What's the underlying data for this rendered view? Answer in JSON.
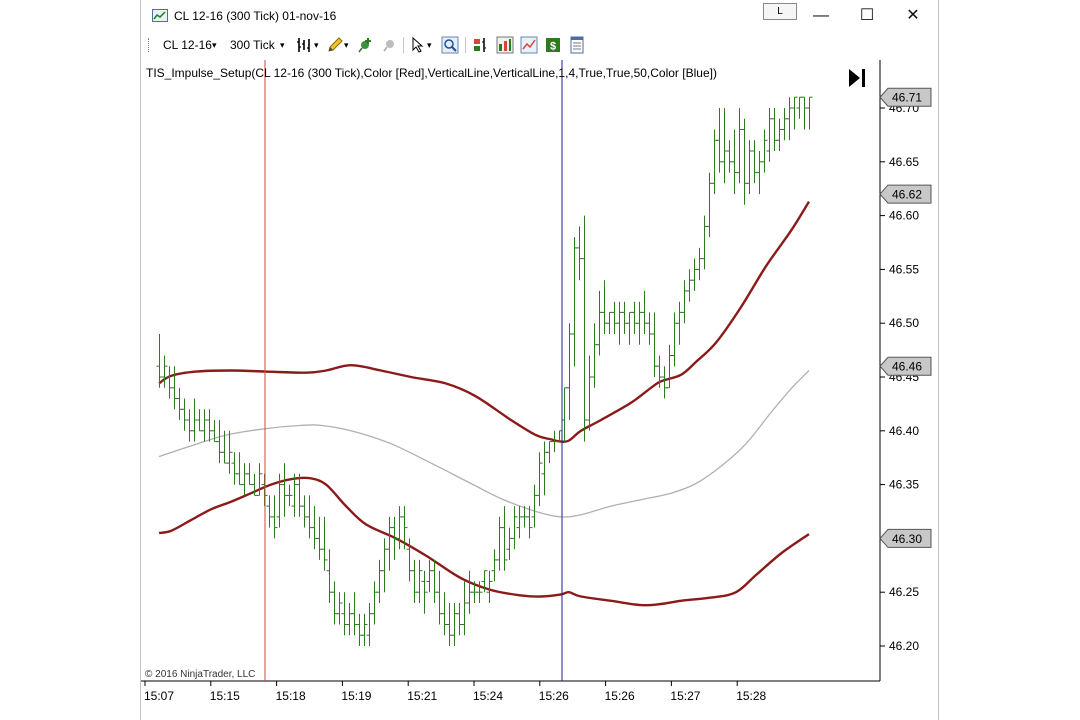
{
  "window": {
    "title": "CL 12-16 (300 Tick)  01-nov-16",
    "link_button": "L",
    "minimize": "—",
    "maximize": "☐",
    "close": "✕"
  },
  "toolbar": {
    "instrument": "CL 12-16",
    "interval": "300 Tick",
    "dropdown_glyph": "▾"
  },
  "chart": {
    "indicator_label": "TIS_Impulse_Setup(CL 12-16 (300 Tick),Color [Red],VerticalLine,VerticalLine,1,4,True,True,50,Color [Blue])",
    "copyright": "© 2016 NinjaTrader, LLC",
    "price_ticks": [
      "46.70",
      "46.65",
      "46.60",
      "46.55",
      "46.50",
      "46.45",
      "46.40",
      "46.35",
      "46.30",
      "46.25",
      "46.20"
    ],
    "time_ticks": [
      "15:07",
      "15:15",
      "15:18",
      "15:19",
      "15:21",
      "15:24",
      "15:26",
      "15:26",
      "15:27",
      "15:28"
    ],
    "price_markers": [
      {
        "value": "46.71",
        "label": "46.71"
      },
      {
        "value": "46.62",
        "label": "46.62"
      },
      {
        "value": "46.46",
        "label": "46.46"
      },
      {
        "value": "46.30",
        "label": "46.30"
      }
    ],
    "colors": {
      "bars": "#2d7a1f",
      "bands": "#8b1a1a",
      "midline": "#b0b0b0",
      "red_vline": "#d9443a",
      "blue_vline": "#1c1c9c",
      "marker_fill": "#c8c8c8"
    }
  }
}
